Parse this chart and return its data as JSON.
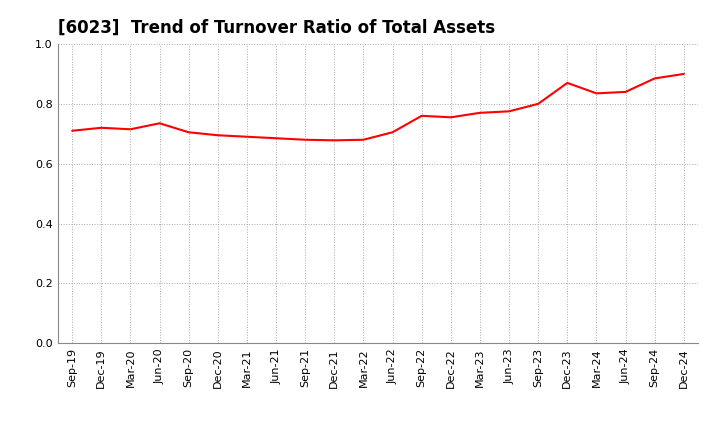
{
  "title": "[6023]  Trend of Turnover Ratio of Total Assets",
  "labels": [
    "Sep-19",
    "Dec-19",
    "Mar-20",
    "Jun-20",
    "Sep-20",
    "Dec-20",
    "Mar-21",
    "Jun-21",
    "Sep-21",
    "Dec-21",
    "Mar-22",
    "Jun-22",
    "Sep-22",
    "Dec-22",
    "Mar-23",
    "Jun-23",
    "Sep-23",
    "Dec-23",
    "Mar-24",
    "Jun-24",
    "Sep-24",
    "Dec-24"
  ],
  "values": [
    0.71,
    0.72,
    0.715,
    0.735,
    0.705,
    0.695,
    0.69,
    0.685,
    0.68,
    0.678,
    0.68,
    0.705,
    0.76,
    0.755,
    0.77,
    0.775,
    0.8,
    0.87,
    0.835,
    0.84,
    0.885,
    0.9
  ],
  "line_color": "#FF0000",
  "line_width": 1.5,
  "ylim": [
    0.0,
    1.0
  ],
  "yticks": [
    0.0,
    0.2,
    0.4,
    0.6,
    0.8,
    1.0
  ],
  "background_color": "#ffffff",
  "grid_color": "#aaaaaa",
  "title_fontsize": 12,
  "tick_fontsize": 8
}
